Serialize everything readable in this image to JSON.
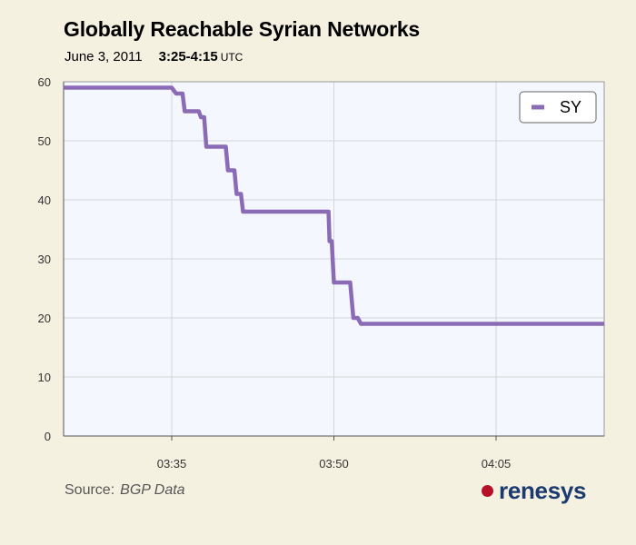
{
  "title": "Globally Reachable Syrian Networks",
  "subtitle": {
    "date": "June 3, 2011",
    "time": "3:25-4:15",
    "tz": "UTC"
  },
  "source": {
    "label": "Source:",
    "value": "BGP Data"
  },
  "logo": {
    "text": "renesys",
    "dot_color": "#b5122a",
    "text_color": "#1b3a6f"
  },
  "chart_data": {
    "type": "line",
    "title": "Globally Reachable Syrian Networks",
    "xlabel": "",
    "ylabel": "",
    "xlim": [
      "03:25",
      "04:15"
    ],
    "ylim": [
      0,
      60
    ],
    "yticks": [
      0,
      10,
      20,
      30,
      40,
      50,
      60
    ],
    "xticks": [
      "03:35",
      "03:50",
      "04:05"
    ],
    "grid": true,
    "legend": "top-right",
    "series": [
      {
        "name": "SY",
        "color": "#8b6bb5",
        "step": true,
        "points": [
          [
            "03:25",
            59
          ],
          [
            "03:35",
            59
          ],
          [
            "03:35.4",
            58
          ],
          [
            "03:36",
            58
          ],
          [
            "03:36.2",
            55
          ],
          [
            "03:37.5",
            55
          ],
          [
            "03:37.7",
            54
          ],
          [
            "03:38",
            54
          ],
          [
            "03:38.2",
            49
          ],
          [
            "03:40",
            49
          ],
          [
            "03:40.2",
            45
          ],
          [
            "03:40.8",
            45
          ],
          [
            "03:41",
            41
          ],
          [
            "03:41.4",
            41
          ],
          [
            "03:41.6",
            38
          ],
          [
            "03:49.5",
            38
          ],
          [
            "03:49.6",
            33
          ],
          [
            "03:49.8",
            33
          ],
          [
            "03:50",
            26
          ],
          [
            "03:51.5",
            26
          ],
          [
            "03:51.8",
            20
          ],
          [
            "03:52.2",
            20
          ],
          [
            "03:52.5",
            19
          ],
          [
            "04:15",
            19
          ]
        ]
      }
    ]
  }
}
